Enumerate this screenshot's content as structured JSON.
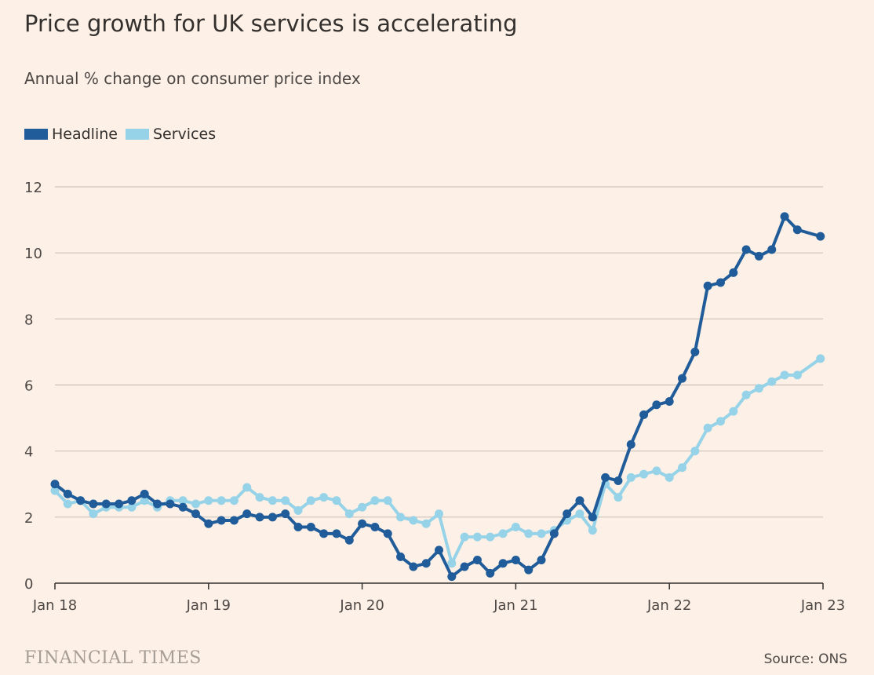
{
  "chart_data": {
    "type": "line",
    "title": "Price growth for UK services is accelerating",
    "subtitle": "Annual % change on consumer price index",
    "xlabel": "",
    "ylabel": "",
    "ylim": [
      0,
      12
    ],
    "yticks": [
      0,
      2,
      4,
      6,
      8,
      10,
      12
    ],
    "xticks": [
      "Jan 18",
      "Jan 19",
      "Jan 20",
      "Jan 21",
      "Jan 22",
      "Jan 23"
    ],
    "x_start": "Jan 18",
    "x_end": "Jan 23",
    "grid": true,
    "legend_position": "top-left",
    "series": [
      {
        "name": "Headline",
        "color": "#1f5c99",
        "values": [
          3.0,
          2.7,
          2.5,
          2.4,
          2.4,
          2.4,
          2.5,
          2.7,
          2.4,
          2.4,
          2.3,
          2.1,
          1.8,
          1.9,
          1.9,
          2.1,
          2.0,
          2.0,
          2.1,
          1.7,
          1.7,
          1.5,
          1.5,
          1.3,
          1.8,
          1.7,
          1.5,
          0.8,
          0.5,
          0.6,
          1.0,
          0.2,
          0.5,
          0.7,
          0.3,
          0.6,
          0.7,
          0.4,
          0.7,
          1.5,
          2.1,
          2.5,
          2.0,
          3.2,
          3.1,
          4.2,
          5.1,
          5.4,
          5.5,
          6.2,
          7.0,
          9.0,
          9.1,
          9.4,
          10.1,
          9.9,
          10.1,
          11.1,
          10.7,
          10.5
        ]
      },
      {
        "name": "Services",
        "color": "#96d3e8",
        "values": [
          2.8,
          2.4,
          2.5,
          2.1,
          2.3,
          2.3,
          2.3,
          2.5,
          2.3,
          2.5,
          2.5,
          2.4,
          2.5,
          2.5,
          2.5,
          2.9,
          2.6,
          2.5,
          2.5,
          2.2,
          2.5,
          2.6,
          2.5,
          2.1,
          2.3,
          2.5,
          2.5,
          2.0,
          1.9,
          1.8,
          2.1,
          0.6,
          1.4,
          1.4,
          1.4,
          1.5,
          1.7,
          1.5,
          1.5,
          1.6,
          1.9,
          2.1,
          1.6,
          3.0,
          2.6,
          3.2,
          3.3,
          3.4,
          3.2,
          3.5,
          4.0,
          4.7,
          4.9,
          5.2,
          5.7,
          5.9,
          6.1,
          6.3,
          6.3,
          6.8
        ]
      }
    ]
  },
  "footer": {
    "logo_text": "FINANCIAL TIMES",
    "source": "Source: ONS"
  }
}
